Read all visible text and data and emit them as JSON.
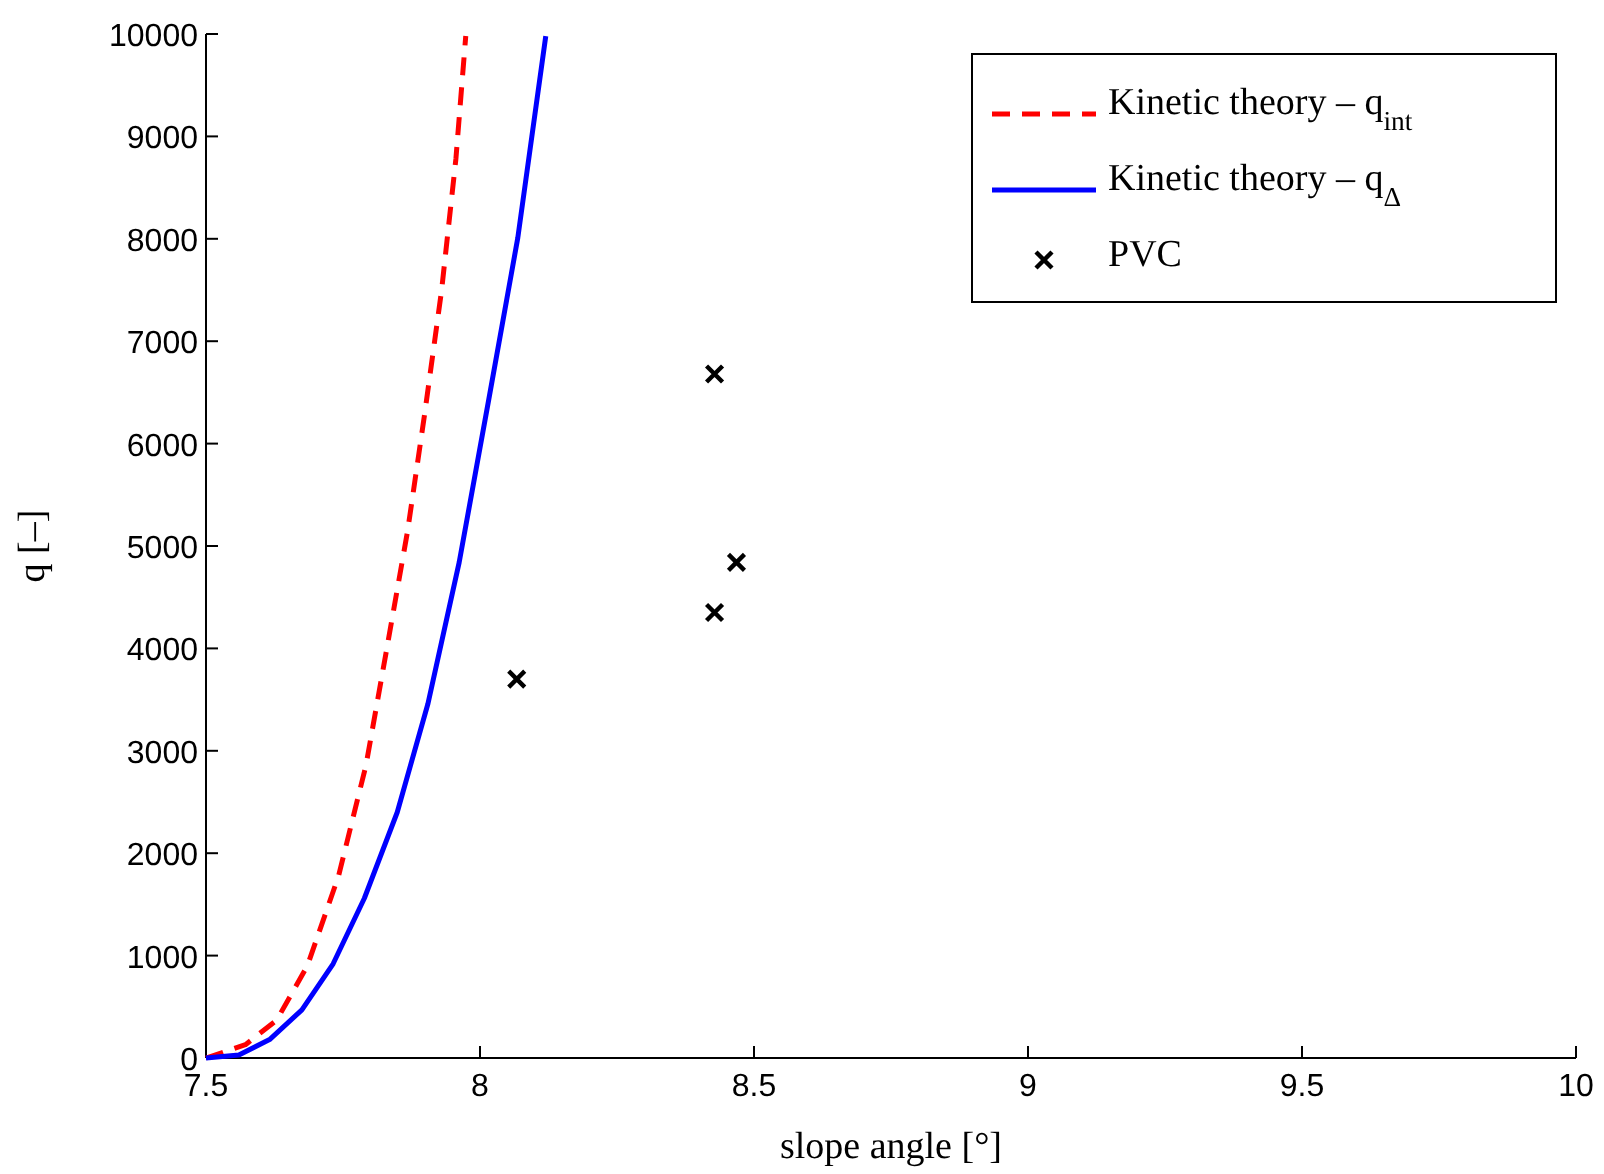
{
  "chart_data": {
    "type": "line",
    "xlabel": "slope angle [°]",
    "ylabel": "q [–]",
    "xlim": [
      7.5,
      10
    ],
    "xticks": [
      7.5,
      8,
      8.5,
      9,
      9.5,
      10
    ],
    "ylim": [
      0,
      10000
    ],
    "yticks": [
      0,
      1000,
      2000,
      3000,
      4000,
      5000,
      6000,
      7000,
      8000,
      9000,
      10000
    ],
    "grid": false,
    "legend": "top right",
    "series": [
      {
        "name": "Kinetic theory – q$_{int}$",
        "color": "#ff0000",
        "line_style": "dashed",
        "marker": "none",
        "x": [
          7.5,
          7.572,
          7.629,
          7.685,
          7.742,
          7.792,
          7.83,
          7.868,
          7.899,
          7.93,
          7.956,
          7.974
        ],
        "values": [
          0,
          130,
          370,
          900,
          1780,
          2860,
          4000,
          5150,
          6290,
          7500,
          8780,
          9980
        ]
      },
      {
        "name": "Kinetic theory – q$_{Δ}$",
        "color": "#0000ff",
        "line_style": "solid",
        "marker": "none",
        "x": [
          7.5,
          7.56,
          7.616,
          7.675,
          7.732,
          7.789,
          7.849,
          7.905,
          7.962,
          8.016,
          8.069,
          8.12
        ],
        "values": [
          0,
          30,
          180,
          470,
          920,
          1560,
          2400,
          3460,
          4840,
          6430,
          8010,
          9980
        ]
      },
      {
        "name": "PVC",
        "type": "scatter",
        "color": "#000000",
        "marker": "cross",
        "x": [
          8.067,
          8.428,
          8.468,
          8.428
        ],
        "values": [
          3700,
          6680,
          4840,
          4350
        ]
      }
    ]
  }
}
